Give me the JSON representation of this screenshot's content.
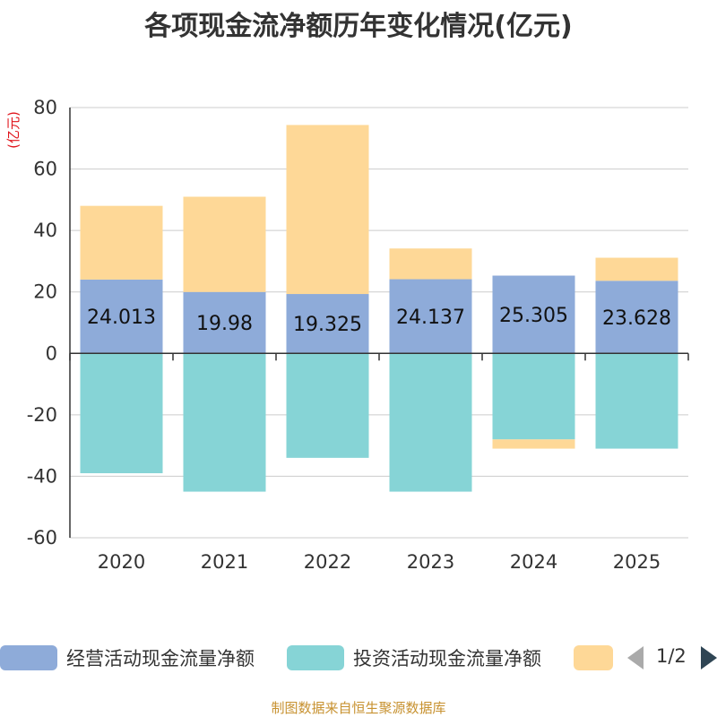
{
  "chart_data": {
    "type": "bar",
    "stacked": true,
    "title": "各项现金流净额历年变化情况(亿元)",
    "ylabel": "(亿元)",
    "xlabel": "",
    "categories": [
      "2020",
      "2021",
      "2022",
      "2023",
      "2024",
      "2025"
    ],
    "ylim": [
      -60,
      80
    ],
    "yticks": [
      -60,
      -40,
      -20,
      0,
      20,
      40,
      60,
      80
    ],
    "grid": true,
    "series": [
      {
        "name": "经营活动现金流量净额",
        "color": "#8eabd9",
        "values": [
          24.013,
          19.98,
          19.325,
          24.137,
          25.305,
          23.628
        ],
        "data_labels": [
          "24.013",
          "19.98",
          "19.325",
          "24.137",
          "25.305",
          "23.628"
        ]
      },
      {
        "name": "投资活动现金流量净额",
        "color": "#86d4d6",
        "values": [
          -39,
          -45,
          -34,
          -45,
          -28,
          -31
        ]
      },
      {
        "name": "",
        "color": "#fed897",
        "values": [
          24,
          31,
          55,
          10,
          -3,
          7.5
        ]
      }
    ]
  },
  "legend": {
    "items": [
      {
        "label": "经营活动现金流量净额",
        "color": "#8eabd9"
      },
      {
        "label": "投资活动现金流量净额",
        "color": "#86d4d6"
      },
      {
        "label": "",
        "color": "#fed897"
      }
    ],
    "pager_text": "1/2"
  },
  "source": "制图数据来自恒生聚源数据库"
}
